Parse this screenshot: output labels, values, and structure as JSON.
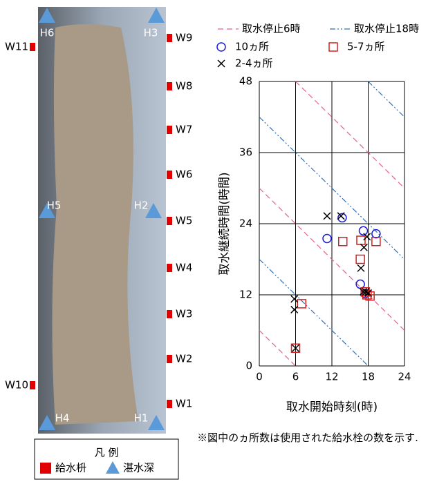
{
  "chart_data": {
    "type": "scatter",
    "xlabel": "取水開始時刻(時)",
    "ylabel": "取水継続時間(時間)",
    "xlim": [
      0,
      24
    ],
    "xticks": [
      0,
      6,
      12,
      18,
      24
    ],
    "ylim": [
      0,
      48
    ],
    "yticks": [
      0,
      12,
      24,
      36,
      48
    ],
    "grid": true,
    "note": "※図中のヵ所数は使用された給水栓の数を示す.",
    "lines": [
      {
        "name": "取水停止6時",
        "color": "#e8608a",
        "style": "dashed",
        "x": [
          0,
          6,
          null,
          0,
          24,
          null,
          6,
          24
        ],
        "y": [
          6,
          0,
          null,
          30,
          6,
          null,
          48,
          30
        ]
      },
      {
        "name": "取水停止18時",
        "color": "#3070b8",
        "style": "dashdot",
        "x": [
          0,
          18,
          null,
          0,
          24,
          null,
          18,
          24
        ],
        "y": [
          18,
          0,
          null,
          42,
          18,
          null,
          48,
          42
        ]
      }
    ],
    "series": [
      {
        "name": "10ヵ所",
        "color": "#1a1adc",
        "marker": "circle",
        "x": [
          11.2,
          13.7,
          17.2,
          19.3,
          16.7,
          17.5
        ],
        "values": [
          21.5,
          25,
          22.8,
          22.3,
          13.8,
          12.2
        ]
      },
      {
        "name": "5-7ヵ所",
        "color": "#d42020",
        "marker": "square",
        "x": [
          13.8,
          16.8,
          19.3,
          16.7,
          6,
          7,
          17.8,
          18.3,
          17.5
        ],
        "values": [
          21,
          21.2,
          21,
          18,
          3,
          10.5,
          12,
          11.8,
          12.5
        ]
      },
      {
        "name": "2-4ヵ所",
        "color": "#000000",
        "marker": "x",
        "x": [
          11.2,
          13.5,
          17.3,
          16.8,
          17.8,
          5.8,
          5.8,
          6,
          17.2,
          17.6,
          18
        ],
        "values": [
          25.3,
          25.3,
          20,
          16.5,
          21.8,
          11.3,
          9.5,
          3,
          12.5,
          12.5,
          12.3
        ]
      }
    ]
  },
  "field_map": {
    "inlets": [
      "W9",
      "W8",
      "W7",
      "W6",
      "W5",
      "W4",
      "W3",
      "W2",
      "W1",
      "W11",
      "W10"
    ],
    "depth_points": [
      "H6",
      "H3",
      "H5",
      "H2",
      "H4",
      "H1"
    ],
    "legend": {
      "title": "凡 例",
      "inlet": "給水枡",
      "depth": "湛水深"
    }
  }
}
